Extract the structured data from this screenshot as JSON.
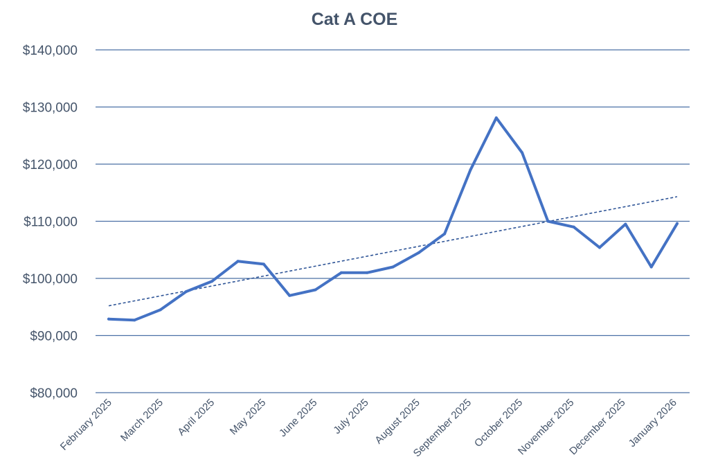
{
  "chart_data": {
    "type": "line",
    "title": "Cat A COE",
    "xlabel": "",
    "ylabel": "",
    "ylim": [
      80000,
      140000
    ],
    "y_ticks": [
      80000,
      90000,
      100000,
      110000,
      120000,
      130000,
      140000
    ],
    "y_tick_labels": [
      "$80,000",
      "$90,000",
      "$100,000",
      "$110,000",
      "$120,000",
      "$130,000",
      "$140,000"
    ],
    "x_tick_labels": [
      "February 2025",
      "March 2025",
      "April 2025",
      "May 2025",
      "June 2025",
      "July 2025",
      "August 2025",
      "September 2025",
      "October 2025",
      "November 2025",
      "December 2025",
      "January 2026"
    ],
    "grid": true,
    "line_color": "#4472C4",
    "series": [
      {
        "name": "Cat A COE",
        "values": [
          92890,
          92700,
          94500,
          97700,
          99500,
          103000,
          102500,
          97000,
          98000,
          101000,
          101000,
          102000,
          104500,
          107800,
          119000,
          128100,
          122000,
          110000,
          109000,
          105400,
          109500,
          102000,
          109600
        ]
      }
    ],
    "trendline": {
      "name": "Linear trend",
      "style": "dashed",
      "start": 95200,
      "end": 114300
    }
  }
}
